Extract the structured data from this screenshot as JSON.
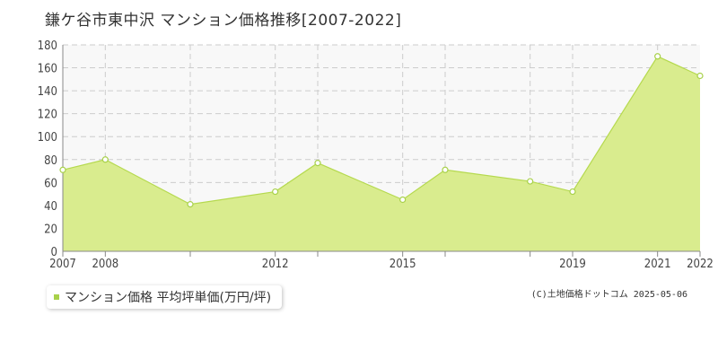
{
  "title": "鎌ケ谷市東中沢 マンション価格推移[2007-2022]",
  "legend": {
    "label": "マンション価格 平均坪単価(万円/坪)"
  },
  "copyright": "(C)土地価格ドットコム 2025-05-06",
  "colors": {
    "fill": "#d9ec8e",
    "line": "#b5d94e",
    "marker": "#a8d14a",
    "grid": "#cccccc",
    "plot_bg": "#f8f8f8"
  },
  "chart_data": {
    "type": "area",
    "title": "鎌ケ谷市東中沢 マンション価格推移[2007-2022]",
    "xlabel": "",
    "ylabel": "",
    "ylim": [
      0,
      180
    ],
    "yticks": [
      0,
      20,
      40,
      60,
      80,
      100,
      120,
      140,
      160,
      180
    ],
    "xlim": [
      2007,
      2022
    ],
    "xticks": [
      2007,
      2008,
      2012,
      2015,
      2019,
      2021,
      2022
    ],
    "grid": true,
    "legend_position": "bottom-left",
    "series": [
      {
        "name": "マンション価格 平均坪単価(万円/坪)",
        "x": [
          2007,
          2008,
          2010,
          2012,
          2013,
          2015,
          2016,
          2018,
          2019,
          2021,
          2022
        ],
        "y": [
          71,
          80,
          41,
          52,
          77,
          45,
          71,
          61,
          52,
          170,
          153
        ]
      }
    ]
  }
}
